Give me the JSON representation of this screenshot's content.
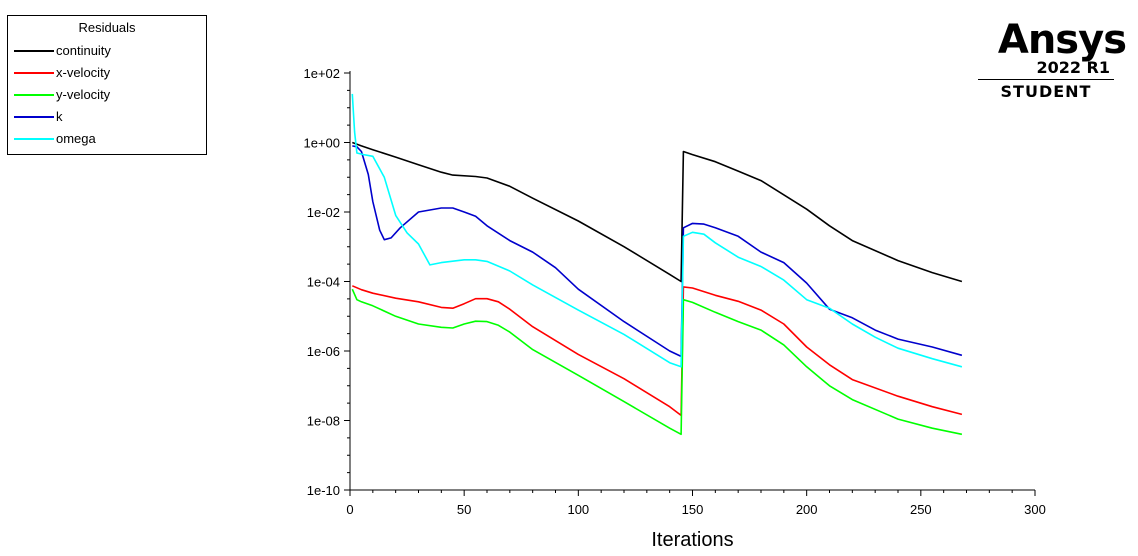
{
  "legend": {
    "title": "Residuals"
  },
  "branding": {
    "name": "Ansys",
    "version": "2022 R1",
    "edition": "STUDENT"
  },
  "chart_data": {
    "type": "line",
    "title": "",
    "xlabel": "Iterations",
    "ylabel": "",
    "xlim": [
      0,
      300
    ],
    "ylim": [
      1e-10,
      100
    ],
    "yscale": "log",
    "grid": false,
    "legend_position": "top-left",
    "x_ticks": [
      0,
      50,
      100,
      150,
      200,
      250,
      300
    ],
    "x_tick_labels": [
      "0",
      "50",
      "100",
      "150",
      "200",
      "250",
      "300"
    ],
    "y_ticks": [
      100,
      1,
      0.01,
      0.0001,
      1e-06,
      1e-08,
      1e-10
    ],
    "y_tick_labels": [
      "1e+02",
      "1e+00",
      "1e-02",
      "1e-04",
      "1e-06",
      "1e-08",
      "1e-10"
    ],
    "series": [
      {
        "name": "continuity",
        "color": "#000000",
        "points": [
          [
            1,
            1.0
          ],
          [
            5,
            0.8
          ],
          [
            10,
            0.62
          ],
          [
            20,
            0.38
          ],
          [
            30,
            0.23
          ],
          [
            40,
            0.14
          ],
          [
            45,
            0.115
          ],
          [
            55,
            0.105
          ],
          [
            60,
            0.095
          ],
          [
            70,
            0.055
          ],
          [
            80,
            0.025
          ],
          [
            100,
            0.0055
          ],
          [
            120,
            0.001
          ],
          [
            140,
            0.00016
          ],
          [
            145,
            0.0001
          ],
          [
            146,
            0.55
          ],
          [
            150,
            0.45
          ],
          [
            160,
            0.28
          ],
          [
            170,
            0.15
          ],
          [
            180,
            0.08
          ],
          [
            200,
            0.012
          ],
          [
            210,
            0.004
          ],
          [
            220,
            0.0015
          ],
          [
            240,
            0.0004
          ],
          [
            255,
            0.00018
          ],
          [
            268,
            0.0001
          ]
        ]
      },
      {
        "name": "x-velocity",
        "color": "#ff0000",
        "points": [
          [
            1,
            7.5e-05
          ],
          [
            5,
            5.8e-05
          ],
          [
            10,
            4.6e-05
          ],
          [
            20,
            3.3e-05
          ],
          [
            30,
            2.6e-05
          ],
          [
            40,
            1.8e-05
          ],
          [
            45,
            1.7e-05
          ],
          [
            50,
            2.3e-05
          ],
          [
            55,
            3.2e-05
          ],
          [
            60,
            3.2e-05
          ],
          [
            65,
            2.6e-05
          ],
          [
            70,
            1.6e-05
          ],
          [
            80,
            5e-06
          ],
          [
            100,
            8e-07
          ],
          [
            120,
            1.6e-07
          ],
          [
            140,
            2.5e-08
          ],
          [
            145,
            1.4e-08
          ],
          [
            146,
            7e-05
          ],
          [
            150,
            6.5e-05
          ],
          [
            160,
            4e-05
          ],
          [
            170,
            2.7e-05
          ],
          [
            180,
            1.5e-05
          ],
          [
            190,
            6e-06
          ],
          [
            200,
            1.3e-06
          ],
          [
            210,
            4e-07
          ],
          [
            220,
            1.5e-07
          ],
          [
            240,
            5e-08
          ],
          [
            255,
            2.5e-08
          ],
          [
            268,
            1.5e-08
          ]
        ]
      },
      {
        "name": "y-velocity",
        "color": "#00ff00",
        "points": [
          [
            1,
            6e-05
          ],
          [
            3,
            3e-05
          ],
          [
            5,
            2.6e-05
          ],
          [
            10,
            2e-05
          ],
          [
            20,
            1e-05
          ],
          [
            30,
            6e-06
          ],
          [
            40,
            4.8e-06
          ],
          [
            45,
            4.6e-06
          ],
          [
            50,
            6e-06
          ],
          [
            55,
            7.2e-06
          ],
          [
            60,
            7e-06
          ],
          [
            65,
            5.5e-06
          ],
          [
            70,
            3.5e-06
          ],
          [
            80,
            1.1e-06
          ],
          [
            100,
            2e-07
          ],
          [
            120,
            3.5e-08
          ],
          [
            140,
            6e-09
          ],
          [
            145,
            4e-09
          ],
          [
            146,
            3e-05
          ],
          [
            150,
            2.5e-05
          ],
          [
            160,
            1.3e-05
          ],
          [
            170,
            7e-06
          ],
          [
            180,
            4e-06
          ],
          [
            190,
            1.5e-06
          ],
          [
            200,
            3.5e-07
          ],
          [
            210,
            1e-07
          ],
          [
            220,
            4e-08
          ],
          [
            240,
            1.1e-08
          ],
          [
            255,
            6e-09
          ],
          [
            268,
            4e-09
          ]
        ]
      },
      {
        "name": "k",
        "color": "#0000cc",
        "points": [
          [
            1,
            0.8
          ],
          [
            3,
            0.75
          ],
          [
            5,
            0.55
          ],
          [
            8,
            0.12
          ],
          [
            10,
            0.02
          ],
          [
            13,
            0.003
          ],
          [
            15,
            0.0016
          ],
          [
            18,
            0.0018
          ],
          [
            22,
            0.0035
          ],
          [
            30,
            0.01
          ],
          [
            40,
            0.013
          ],
          [
            45,
            0.013
          ],
          [
            50,
            0.01
          ],
          [
            55,
            0.0075
          ],
          [
            60,
            0.004
          ],
          [
            70,
            0.0015
          ],
          [
            80,
            0.0007
          ],
          [
            90,
            0.00025
          ],
          [
            100,
            6e-05
          ],
          [
            120,
            7e-06
          ],
          [
            140,
            1e-06
          ],
          [
            145,
            7e-07
          ],
          [
            146,
            0.0035
          ],
          [
            150,
            0.0047
          ],
          [
            155,
            0.0045
          ],
          [
            160,
            0.0035
          ],
          [
            170,
            0.002
          ],
          [
            180,
            0.0007
          ],
          [
            190,
            0.00035
          ],
          [
            200,
            9e-05
          ],
          [
            210,
            1.6e-05
          ],
          [
            220,
            9e-06
          ],
          [
            230,
            4e-06
          ],
          [
            240,
            2.2e-06
          ],
          [
            255,
            1.3e-06
          ],
          [
            268,
            7.5e-07
          ]
        ]
      },
      {
        "name": "omega",
        "color": "#00ffff",
        "points": [
          [
            1,
            25
          ],
          [
            2,
            2
          ],
          [
            3,
            0.5
          ],
          [
            6,
            0.45
          ],
          [
            10,
            0.4
          ],
          [
            15,
            0.1
          ],
          [
            20,
            0.008
          ],
          [
            25,
            0.0025
          ],
          [
            30,
            0.0012
          ],
          [
            35,
            0.0003
          ],
          [
            40,
            0.00035
          ],
          [
            50,
            0.00042
          ],
          [
            55,
            0.00042
          ],
          [
            60,
            0.00038
          ],
          [
            70,
            0.0002
          ],
          [
            80,
            8e-05
          ],
          [
            100,
            1.5e-05
          ],
          [
            120,
            3e-06
          ],
          [
            140,
            4.6e-07
          ],
          [
            145,
            3.5e-07
          ],
          [
            146,
            0.002
          ],
          [
            150,
            0.0026
          ],
          [
            155,
            0.0023
          ],
          [
            160,
            0.0013
          ],
          [
            170,
            0.0005
          ],
          [
            180,
            0.00027
          ],
          [
            190,
            0.00011
          ],
          [
            200,
            3e-05
          ],
          [
            210,
            1.7e-05
          ],
          [
            220,
            6e-06
          ],
          [
            230,
            2.5e-06
          ],
          [
            240,
            1.2e-06
          ],
          [
            255,
            6e-07
          ],
          [
            268,
            3.5e-07
          ]
        ]
      }
    ]
  }
}
